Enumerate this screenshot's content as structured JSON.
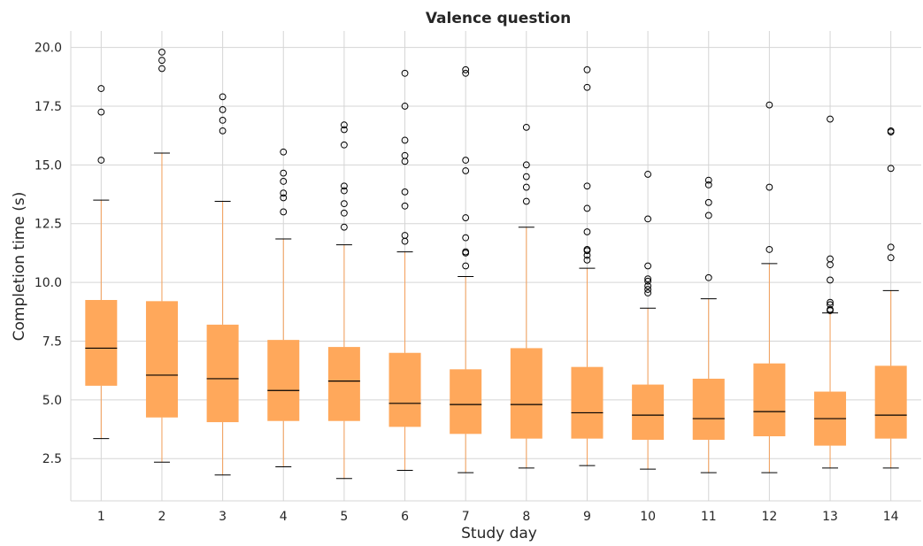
{
  "chart_data": {
    "type": "box",
    "title": "Valence question",
    "xlabel": "Study day",
    "ylabel": "Completion time (s)",
    "ylim": [
      0.7,
      20.7
    ],
    "yticks": [
      2.5,
      5.0,
      7.5,
      10.0,
      12.5,
      15.0,
      17.5,
      20.0
    ],
    "ytick_labels": [
      "2.5",
      "5.0",
      "7.5",
      "10.0",
      "12.5",
      "15.0",
      "17.5",
      "20.0"
    ],
    "grid": true,
    "colors": {
      "box": "#FFA85B",
      "whisker": "#F5A05A",
      "median": "#000000",
      "grid": "#D5D5D5"
    },
    "categories": [
      "1",
      "2",
      "3",
      "4",
      "5",
      "6",
      "7",
      "8",
      "9",
      "10",
      "11",
      "12",
      "13",
      "14"
    ],
    "boxes": [
      {
        "day": "1",
        "whislo": 3.35,
        "q1": 5.6,
        "med": 7.2,
        "q3": 9.25,
        "whishi": 13.5,
        "fliers": [
          15.2,
          17.25,
          18.25
        ]
      },
      {
        "day": "2",
        "whislo": 2.35,
        "q1": 4.25,
        "med": 6.05,
        "q3": 9.2,
        "whishi": 15.5,
        "fliers": [
          19.1,
          19.45,
          19.8
        ]
      },
      {
        "day": "3",
        "whislo": 1.8,
        "q1": 4.05,
        "med": 5.9,
        "q3": 8.2,
        "whishi": 13.45,
        "fliers": [
          16.45,
          16.9,
          17.35,
          17.9
        ]
      },
      {
        "day": "4",
        "whislo": 2.15,
        "q1": 4.1,
        "med": 5.4,
        "q3": 7.55,
        "whishi": 11.85,
        "fliers": [
          13.0,
          13.6,
          13.8,
          14.3,
          14.65,
          15.55
        ]
      },
      {
        "day": "5",
        "whislo": 1.65,
        "q1": 4.1,
        "med": 5.8,
        "q3": 7.25,
        "whishi": 11.6,
        "fliers": [
          12.35,
          12.95,
          13.35,
          13.9,
          14.1,
          15.85,
          16.5,
          16.7
        ]
      },
      {
        "day": "6",
        "whislo": 2.0,
        "q1": 3.85,
        "med": 4.85,
        "q3": 7.0,
        "whishi": 11.3,
        "fliers": [
          11.75,
          12.0,
          13.25,
          13.85,
          15.15,
          15.4,
          16.05,
          17.5,
          18.9
        ]
      },
      {
        "day": "7",
        "whislo": 1.9,
        "q1": 3.55,
        "med": 4.8,
        "q3": 6.3,
        "whishi": 10.25,
        "fliers": [
          10.7,
          11.25,
          11.3,
          11.9,
          12.75,
          14.75,
          15.2,
          18.9,
          19.05
        ]
      },
      {
        "day": "8",
        "whislo": 2.1,
        "q1": 3.35,
        "med": 4.8,
        "q3": 7.2,
        "whishi": 12.35,
        "fliers": [
          13.45,
          14.05,
          14.5,
          15.0,
          16.6
        ]
      },
      {
        "day": "9",
        "whislo": 2.2,
        "q1": 3.35,
        "med": 4.45,
        "q3": 6.4,
        "whishi": 10.6,
        "fliers": [
          10.95,
          11.15,
          11.35,
          11.4,
          12.15,
          13.15,
          14.1,
          18.3,
          19.05
        ]
      },
      {
        "day": "10",
        "whislo": 2.05,
        "q1": 3.3,
        "med": 4.35,
        "q3": 5.65,
        "whishi": 8.9,
        "fliers": [
          9.55,
          9.7,
          9.85,
          10.05,
          10.15,
          10.7,
          12.7,
          14.6
        ]
      },
      {
        "day": "11",
        "whislo": 1.9,
        "q1": 3.3,
        "med": 4.2,
        "q3": 5.9,
        "whishi": 9.3,
        "fliers": [
          10.2,
          12.85,
          13.4,
          14.15,
          14.35
        ]
      },
      {
        "day": "12",
        "whislo": 1.9,
        "q1": 3.45,
        "med": 4.5,
        "q3": 6.55,
        "whishi": 10.8,
        "fliers": [
          11.4,
          14.05,
          17.55
        ]
      },
      {
        "day": "13",
        "whislo": 2.1,
        "q1": 3.05,
        "med": 4.2,
        "q3": 5.35,
        "whishi": 8.7,
        "fliers": [
          8.8,
          8.85,
          9.05,
          9.15,
          10.1,
          10.75,
          11.0,
          16.95
        ]
      },
      {
        "day": "14",
        "whislo": 2.1,
        "q1": 3.35,
        "med": 4.35,
        "q3": 6.45,
        "whishi": 9.65,
        "fliers": [
          11.05,
          11.5,
          14.85,
          16.4,
          16.45
        ]
      }
    ]
  }
}
